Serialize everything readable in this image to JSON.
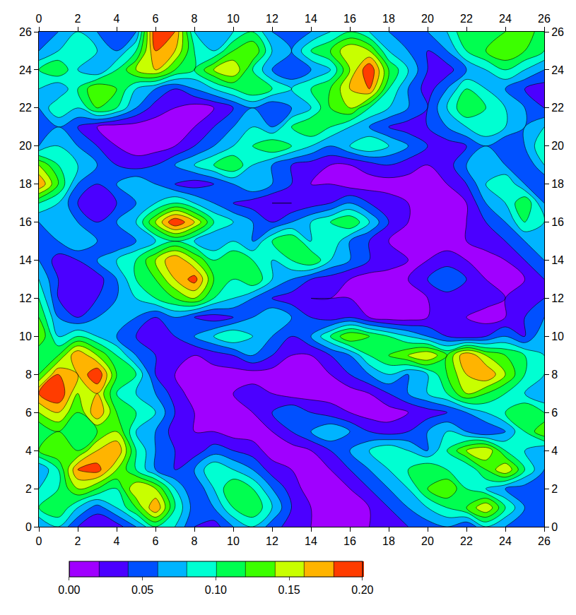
{
  "chart_data": {
    "type": "contour",
    "x": [
      0,
      1,
      2,
      3,
      4,
      5,
      6,
      7,
      8,
      9,
      10,
      11,
      12,
      13,
      14,
      15,
      16,
      17,
      18,
      19,
      20,
      21,
      22,
      23,
      24,
      25,
      26
    ],
    "y": [
      0,
      1,
      2,
      3,
      4,
      5,
      6,
      7,
      8,
      9,
      10,
      11,
      12,
      13,
      14,
      15,
      16,
      17,
      18,
      19,
      20,
      21,
      22,
      23,
      24,
      25,
      26
    ],
    "z": [
      [
        0.06,
        0.08,
        0.04,
        0.02,
        0.03,
        0.06,
        0.1,
        0.08,
        0.04,
        0.03,
        0.06,
        0.08,
        0.05,
        0.03,
        0.02,
        0.01,
        0.01,
        0.02,
        0.03,
        0.04,
        0.05,
        0.06,
        0.04,
        0.08,
        0.06,
        0.04,
        0.05
      ],
      [
        0.1,
        0.12,
        0.08,
        0.05,
        0.08,
        0.12,
        0.18,
        0.1,
        0.05,
        0.06,
        0.1,
        0.12,
        0.08,
        0.04,
        0.02,
        0.01,
        0.01,
        0.02,
        0.04,
        0.06,
        0.08,
        0.1,
        0.12,
        0.16,
        0.1,
        0.06,
        0.05
      ],
      [
        0.08,
        0.1,
        0.14,
        0.12,
        0.1,
        0.16,
        0.14,
        0.08,
        0.04,
        0.08,
        0.12,
        0.1,
        0.06,
        0.03,
        0.01,
        0.01,
        0.02,
        0.04,
        0.06,
        0.08,
        0.12,
        0.14,
        0.1,
        0.08,
        0.06,
        0.05,
        0.04
      ],
      [
        0.06,
        0.1,
        0.18,
        0.19,
        0.14,
        0.1,
        0.06,
        0.04,
        0.06,
        0.1,
        0.08,
        0.06,
        0.03,
        0.02,
        0.01,
        0.02,
        0.04,
        0.06,
        0.08,
        0.1,
        0.12,
        0.1,
        0.08,
        0.12,
        0.16,
        0.1,
        0.06
      ],
      [
        0.12,
        0.14,
        0.12,
        0.16,
        0.18,
        0.1,
        0.06,
        0.04,
        0.03,
        0.05,
        0.04,
        0.03,
        0.01,
        0.01,
        0.02,
        0.04,
        0.06,
        0.08,
        0.1,
        0.08,
        0.06,
        0.1,
        0.14,
        0.16,
        0.1,
        0.08,
        0.06
      ],
      [
        0.1,
        0.12,
        0.1,
        0.12,
        0.14,
        0.08,
        0.06,
        0.03,
        0.02,
        0.02,
        0.01,
        0.01,
        0.02,
        0.04,
        0.06,
        0.08,
        0.06,
        0.04,
        0.03,
        0.04,
        0.06,
        0.08,
        0.06,
        0.04,
        0.06,
        0.1,
        0.14
      ],
      [
        0.14,
        0.16,
        0.12,
        0.18,
        0.12,
        0.1,
        0.08,
        0.04,
        0.02,
        0.01,
        0.01,
        0.02,
        0.04,
        0.06,
        0.04,
        0.03,
        0.02,
        0.01,
        0.01,
        0.02,
        0.03,
        0.04,
        0.06,
        0.08,
        0.1,
        0.12,
        0.1
      ],
      [
        0.18,
        0.2,
        0.14,
        0.16,
        0.1,
        0.08,
        0.06,
        0.03,
        0.01,
        0.01,
        0.02,
        0.03,
        0.02,
        0.01,
        0.01,
        0.01,
        0.01,
        0.02,
        0.04,
        0.06,
        0.08,
        0.1,
        0.14,
        0.12,
        0.1,
        0.08,
        0.06
      ],
      [
        0.12,
        0.18,
        0.16,
        0.2,
        0.12,
        0.1,
        0.04,
        0.02,
        0.01,
        0.01,
        0.01,
        0.01,
        0.01,
        0.01,
        0.01,
        0.02,
        0.04,
        0.06,
        0.08,
        0.06,
        0.08,
        0.12,
        0.16,
        0.18,
        0.14,
        0.1,
        0.08
      ],
      [
        0.1,
        0.12,
        0.18,
        0.14,
        0.1,
        0.06,
        0.04,
        0.03,
        0.02,
        0.03,
        0.04,
        0.06,
        0.04,
        0.02,
        0.02,
        0.04,
        0.06,
        0.1,
        0.12,
        0.14,
        0.16,
        0.12,
        0.18,
        0.14,
        0.12,
        0.1,
        0.08
      ],
      [
        0.14,
        0.08,
        0.1,
        0.08,
        0.06,
        0.04,
        0.03,
        0.04,
        0.06,
        0.08,
        0.1,
        0.08,
        0.06,
        0.04,
        0.06,
        0.1,
        0.14,
        0.12,
        0.1,
        0.08,
        0.06,
        0.04,
        0.03,
        0.04,
        0.06,
        0.04,
        0.08
      ],
      [
        0.12,
        0.06,
        0.04,
        0.06,
        0.08,
        0.06,
        0.04,
        0.06,
        0.04,
        0.03,
        0.04,
        0.06,
        0.08,
        0.06,
        0.04,
        0.03,
        0.04,
        0.02,
        0.01,
        0.01,
        0.02,
        0.03,
        0.02,
        0.01,
        0.02,
        0.04,
        0.06
      ],
      [
        0.1,
        0.04,
        0.03,
        0.04,
        0.06,
        0.08,
        0.1,
        0.12,
        0.14,
        0.1,
        0.08,
        0.06,
        0.04,
        0.03,
        0.02,
        0.02,
        0.02,
        0.01,
        0.01,
        0.01,
        0.02,
        0.03,
        0.04,
        0.03,
        0.02,
        0.03,
        0.04
      ],
      [
        0.08,
        0.04,
        0.02,
        0.03,
        0.06,
        0.1,
        0.12,
        0.16,
        0.19,
        0.12,
        0.1,
        0.12,
        0.08,
        0.06,
        0.04,
        0.03,
        0.02,
        0.01,
        0.01,
        0.02,
        0.04,
        0.06,
        0.04,
        0.02,
        0.01,
        0.02,
        0.04
      ],
      [
        0.06,
        0.03,
        0.04,
        0.06,
        0.08,
        0.1,
        0.14,
        0.18,
        0.14,
        0.1,
        0.12,
        0.1,
        0.08,
        0.1,
        0.12,
        0.08,
        0.06,
        0.04,
        0.03,
        0.02,
        0.02,
        0.03,
        0.02,
        0.01,
        0.02,
        0.04,
        0.06
      ],
      [
        0.04,
        0.06,
        0.08,
        0.06,
        0.04,
        0.06,
        0.08,
        0.1,
        0.08,
        0.06,
        0.08,
        0.06,
        0.1,
        0.12,
        0.08,
        0.1,
        0.06,
        0.04,
        0.02,
        0.01,
        0.01,
        0.01,
        0.02,
        0.03,
        0.04,
        0.06,
        0.08
      ],
      [
        0.06,
        0.08,
        0.06,
        0.04,
        0.06,
        0.08,
        0.14,
        0.2,
        0.16,
        0.1,
        0.08,
        0.06,
        0.04,
        0.06,
        0.08,
        0.1,
        0.12,
        0.08,
        0.04,
        0.02,
        0.01,
        0.01,
        0.02,
        0.04,
        0.06,
        0.1,
        0.08
      ],
      [
        0.1,
        0.08,
        0.04,
        0.03,
        0.04,
        0.06,
        0.08,
        0.1,
        0.08,
        0.06,
        0.04,
        0.03,
        0.02,
        0.02,
        0.03,
        0.04,
        0.06,
        0.04,
        0.03,
        0.02,
        0.01,
        0.01,
        0.02,
        0.06,
        0.08,
        0.12,
        0.06
      ],
      [
        0.18,
        0.12,
        0.06,
        0.04,
        0.06,
        0.08,
        0.06,
        0.04,
        0.03,
        0.04,
        0.06,
        0.08,
        0.06,
        0.04,
        0.02,
        0.02,
        0.01,
        0.01,
        0.01,
        0.01,
        0.01,
        0.02,
        0.04,
        0.08,
        0.1,
        0.06,
        0.04
      ],
      [
        0.14,
        0.1,
        0.08,
        0.06,
        0.04,
        0.03,
        0.04,
        0.06,
        0.08,
        0.1,
        0.12,
        0.08,
        0.06,
        0.04,
        0.03,
        0.02,
        0.02,
        0.03,
        0.04,
        0.03,
        0.02,
        0.03,
        0.06,
        0.08,
        0.06,
        0.04,
        0.08
      ],
      [
        0.06,
        0.08,
        0.06,
        0.04,
        0.02,
        0.01,
        0.01,
        0.02,
        0.04,
        0.06,
        0.08,
        0.1,
        0.12,
        0.1,
        0.08,
        0.06,
        0.08,
        0.1,
        0.08,
        0.06,
        0.04,
        0.03,
        0.04,
        0.06,
        0.04,
        0.06,
        0.1
      ],
      [
        0.04,
        0.06,
        0.04,
        0.02,
        0.01,
        0.01,
        0.01,
        0.01,
        0.02,
        0.04,
        0.06,
        0.08,
        0.06,
        0.1,
        0.12,
        0.1,
        0.08,
        0.06,
        0.04,
        0.03,
        0.04,
        0.06,
        0.08,
        0.1,
        0.08,
        0.06,
        0.08
      ],
      [
        0.06,
        0.1,
        0.08,
        0.12,
        0.1,
        0.06,
        0.03,
        0.02,
        0.01,
        0.02,
        0.04,
        0.06,
        0.04,
        0.06,
        0.08,
        0.12,
        0.14,
        0.1,
        0.08,
        0.06,
        0.04,
        0.08,
        0.12,
        0.1,
        0.08,
        0.06,
        0.04
      ],
      [
        0.08,
        0.06,
        0.1,
        0.14,
        0.12,
        0.08,
        0.06,
        0.04,
        0.06,
        0.08,
        0.1,
        0.12,
        0.1,
        0.08,
        0.1,
        0.12,
        0.16,
        0.18,
        0.1,
        0.06,
        0.03,
        0.06,
        0.1,
        0.08,
        0.06,
        0.04,
        0.03
      ],
      [
        0.1,
        0.12,
        0.08,
        0.06,
        0.1,
        0.14,
        0.16,
        0.12,
        0.1,
        0.14,
        0.16,
        0.1,
        0.06,
        0.04,
        0.06,
        0.08,
        0.14,
        0.2,
        0.12,
        0.08,
        0.04,
        0.03,
        0.06,
        0.08,
        0.1,
        0.08,
        0.06
      ],
      [
        0.06,
        0.08,
        0.1,
        0.08,
        0.06,
        0.1,
        0.18,
        0.16,
        0.1,
        0.08,
        0.12,
        0.14,
        0.08,
        0.06,
        0.1,
        0.12,
        0.16,
        0.14,
        0.08,
        0.06,
        0.04,
        0.06,
        0.1,
        0.12,
        0.14,
        0.12,
        0.1
      ],
      [
        0.04,
        0.06,
        0.08,
        0.06,
        0.04,
        0.06,
        0.2,
        0.18,
        0.08,
        0.06,
        0.08,
        0.1,
        0.06,
        0.04,
        0.06,
        0.08,
        0.1,
        0.08,
        0.06,
        0.04,
        0.06,
        0.08,
        0.12,
        0.1,
        0.12,
        0.14,
        0.1
      ]
    ],
    "xlim": [
      0,
      26
    ],
    "ylim": [
      0,
      26
    ],
    "xticks": [
      0,
      2,
      4,
      6,
      8,
      10,
      12,
      14,
      16,
      18,
      20,
      22,
      24,
      26
    ],
    "yticks": [
      0,
      2,
      4,
      6,
      8,
      10,
      12,
      14,
      16,
      18,
      20,
      22,
      24,
      26
    ],
    "colors": [
      "#a000ff",
      "#4b00ff",
      "#0050ff",
      "#00b4ff",
      "#00ffd2",
      "#00ff50",
      "#3cff00",
      "#c8ff00",
      "#ffb400",
      "#ff3c00"
    ],
    "colorbar": {
      "range": [
        0,
        0.2
      ],
      "ticks": [
        {
          "value": 0,
          "label": "0.00"
        },
        {
          "value": 0.05,
          "label": "0.05"
        },
        {
          "value": 0.1,
          "label": "0.10"
        },
        {
          "value": 0.15,
          "label": "0.15"
        },
        {
          "value": 0.2,
          "label": "0.20"
        }
      ]
    }
  }
}
